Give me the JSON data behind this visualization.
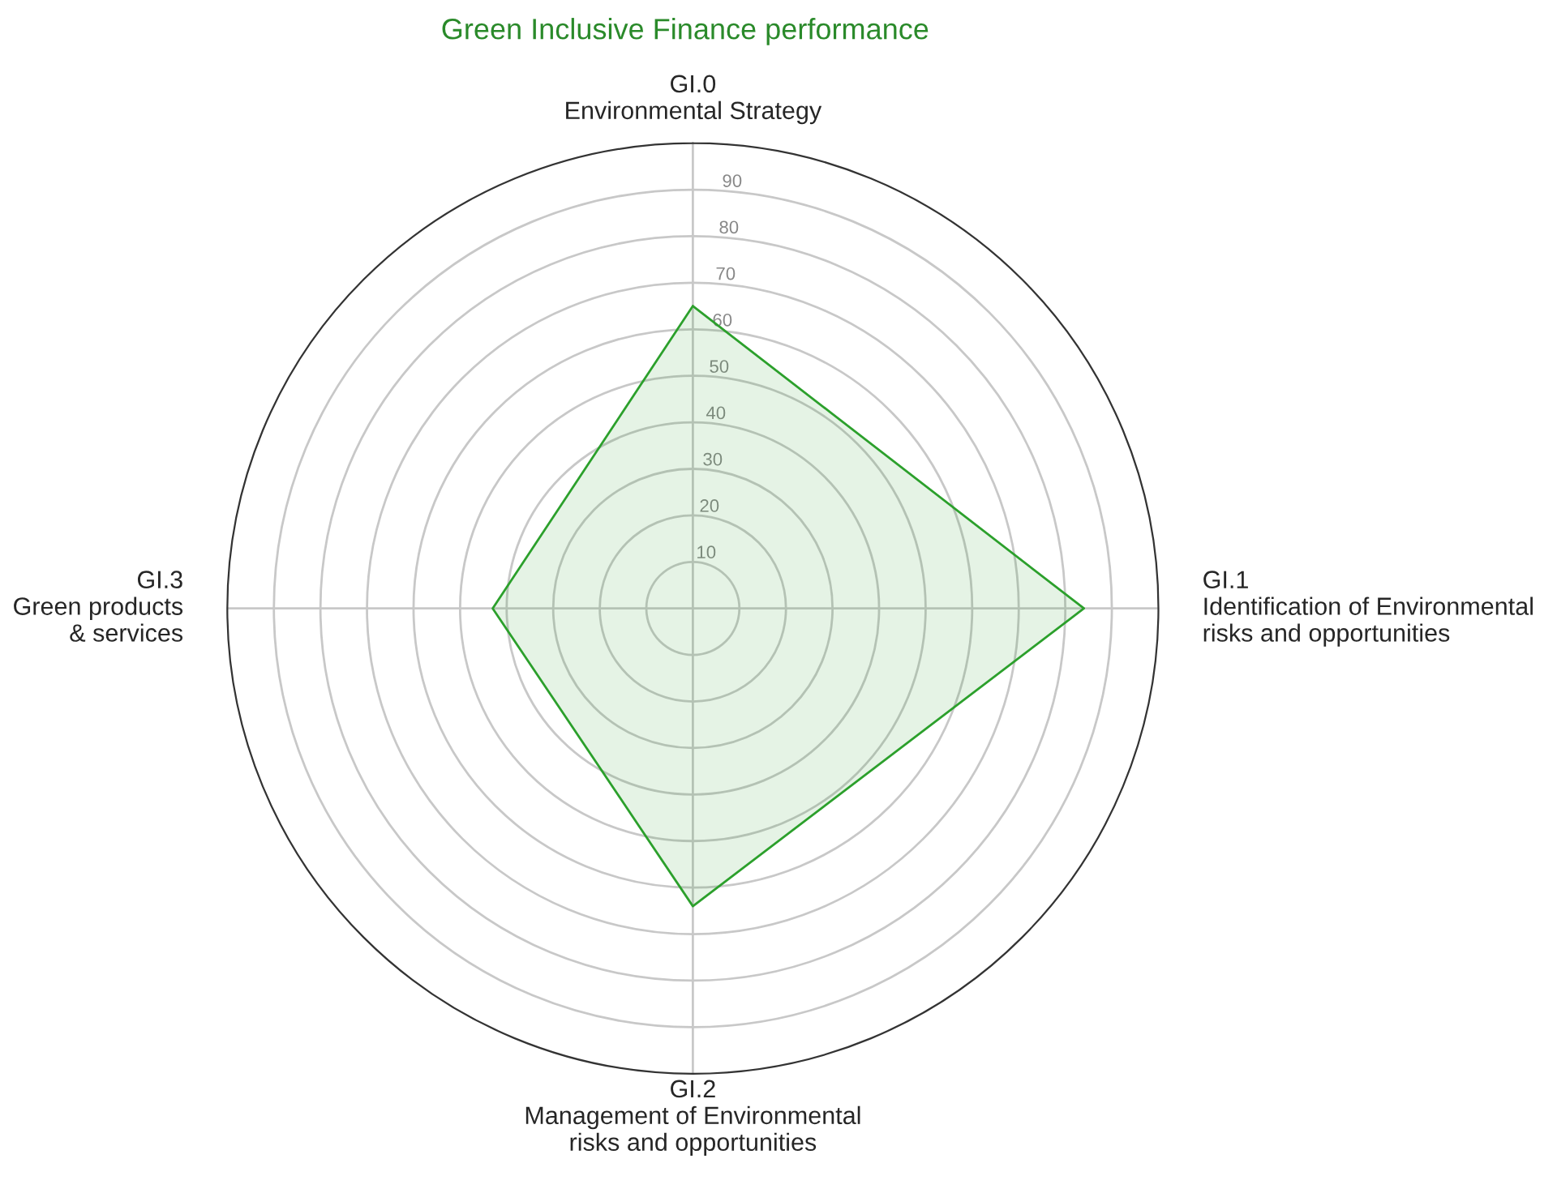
{
  "chart_data": {
    "type": "radar",
    "title": "Green Inclusive Finance performance",
    "categories": [
      "GI.0\nEnvironmental Strategy",
      "GI.1\nIdentification of Environmental\nrisks and opportunities",
      "GI.2\nManagement of Environmental\nrisks and opportunities",
      "GI.3\nGreen products\n& services"
    ],
    "series": [
      {
        "color": "#2ca02c",
        "values": [
          65,
          84,
          64,
          43
        ]
      }
    ],
    "ylim": [
      0,
      100
    ],
    "yticks": [
      10,
      20,
      30,
      40,
      50,
      60,
      70,
      80,
      90
    ],
    "grid": true
  }
}
